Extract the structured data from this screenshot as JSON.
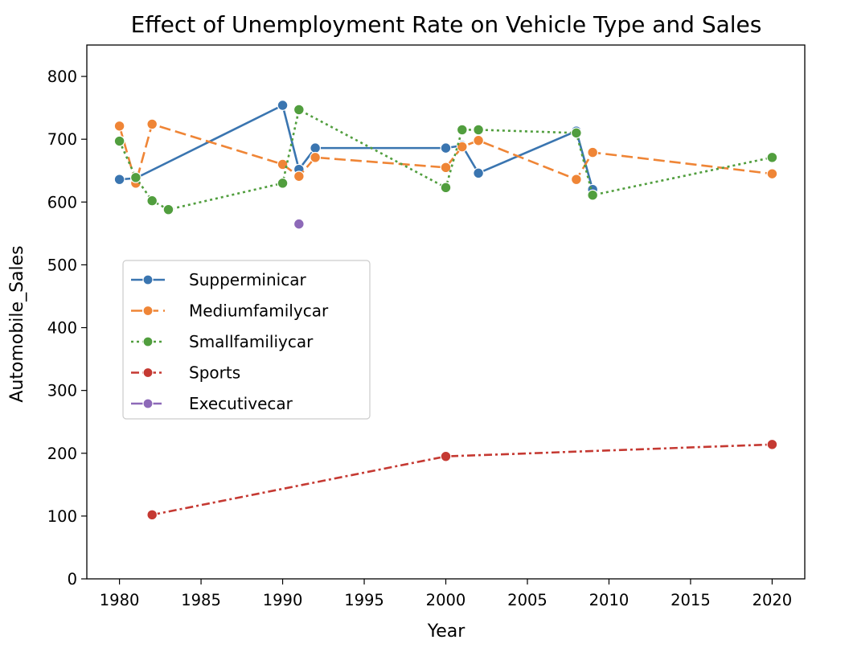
{
  "chart_data": {
    "type": "line",
    "title": "Effect of Unemployment Rate on Vehicle Type and Sales",
    "xlabel": "Year",
    "ylabel": "Automobile_Sales",
    "xlim": [
      1978,
      2022
    ],
    "ylim": [
      0,
      850
    ],
    "xticks": [
      1980,
      1985,
      1990,
      1995,
      2000,
      2005,
      2010,
      2015,
      2020
    ],
    "yticks": [
      0,
      100,
      200,
      300,
      400,
      500,
      600,
      700,
      800
    ],
    "grid": false,
    "legend_position": "center-left",
    "series": [
      {
        "name": "Supperminicar",
        "color": "#3a75b0",
        "dash": "solid",
        "points": [
          [
            1980,
            636
          ],
          [
            1981,
            638
          ],
          [
            1990,
            754
          ],
          [
            1991,
            652
          ],
          [
            1992,
            686
          ],
          [
            2000,
            686
          ],
          [
            2001,
            690
          ],
          [
            2002,
            646
          ],
          [
            2008,
            713
          ],
          [
            2009,
            620
          ]
        ]
      },
      {
        "name": "Mediumfamilycar",
        "color": "#ef8536",
        "dash": "dashed",
        "points": [
          [
            1980,
            721
          ],
          [
            1981,
            630
          ],
          [
            1982,
            724
          ],
          [
            1990,
            660
          ],
          [
            1991,
            641
          ],
          [
            1992,
            671
          ],
          [
            2000,
            655
          ],
          [
            2001,
            688
          ],
          [
            2002,
            698
          ],
          [
            2008,
            636
          ],
          [
            2009,
            679
          ],
          [
            2020,
            645
          ]
        ]
      },
      {
        "name": "Smallfamiliycar",
        "color": "#519e3e",
        "dash": "dotted",
        "points": [
          [
            1980,
            697
          ],
          [
            1981,
            639
          ],
          [
            1982,
            602
          ],
          [
            1983,
            588
          ],
          [
            1990,
            630
          ],
          [
            1991,
            747
          ],
          [
            2000,
            623
          ],
          [
            2001,
            715
          ],
          [
            2002,
            715
          ],
          [
            2008,
            710
          ],
          [
            2009,
            611
          ],
          [
            2020,
            671
          ]
        ]
      },
      {
        "name": "Sports",
        "color": "#c53932",
        "dash": "dashdot",
        "points": [
          [
            1982,
            102
          ],
          [
            2000,
            195
          ],
          [
            2020,
            214
          ]
        ]
      },
      {
        "name": "Executivecar",
        "color": "#8d69b8",
        "dash": "longdash",
        "points": [
          [
            1991,
            565
          ]
        ]
      }
    ]
  }
}
